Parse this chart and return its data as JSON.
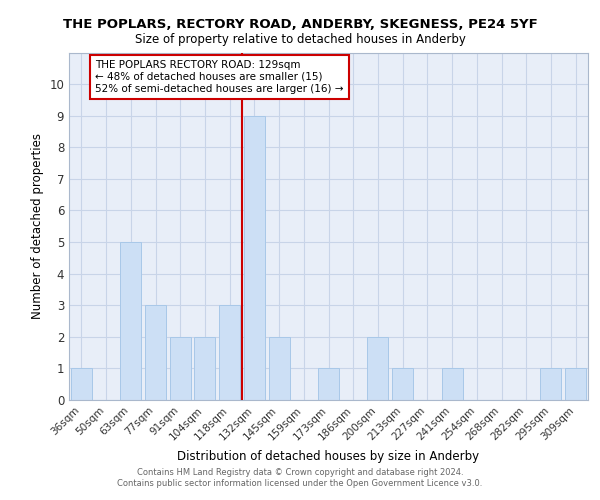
{
  "title": "THE POPLARS, RECTORY ROAD, ANDERBY, SKEGNESS, PE24 5YF",
  "subtitle": "Size of property relative to detached houses in Anderby",
  "xlabel": "Distribution of detached houses by size in Anderby",
  "ylabel": "Number of detached properties",
  "categories": [
    "36sqm",
    "50sqm",
    "63sqm",
    "77sqm",
    "91sqm",
    "104sqm",
    "118sqm",
    "132sqm",
    "145sqm",
    "159sqm",
    "173sqm",
    "186sqm",
    "200sqm",
    "213sqm",
    "227sqm",
    "241sqm",
    "254sqm",
    "268sqm",
    "282sqm",
    "295sqm",
    "309sqm"
  ],
  "values": [
    1,
    0,
    5,
    3,
    2,
    2,
    3,
    9,
    2,
    0,
    1,
    0,
    2,
    1,
    0,
    1,
    0,
    0,
    0,
    1,
    1
  ],
  "bar_color": "#ccdff5",
  "bar_edgecolor": "#a8c8e8",
  "highlight_index": 7,
  "highlight_line_color": "#cc0000",
  "annotation_text": "THE POPLARS RECTORY ROAD: 129sqm\n← 48% of detached houses are smaller (15)\n52% of semi-detached houses are larger (16) →",
  "annotation_box_edgecolor": "#cc0000",
  "ylim": [
    0,
    11
  ],
  "yticks": [
    0,
    1,
    2,
    3,
    4,
    5,
    6,
    7,
    8,
    9,
    10,
    11
  ],
  "grid_color": "#c8d4e8",
  "background_color": "#e8eef8",
  "footer_line1": "Contains HM Land Registry data © Crown copyright and database right 2024.",
  "footer_line2": "Contains public sector information licensed under the Open Government Licence v3.0."
}
